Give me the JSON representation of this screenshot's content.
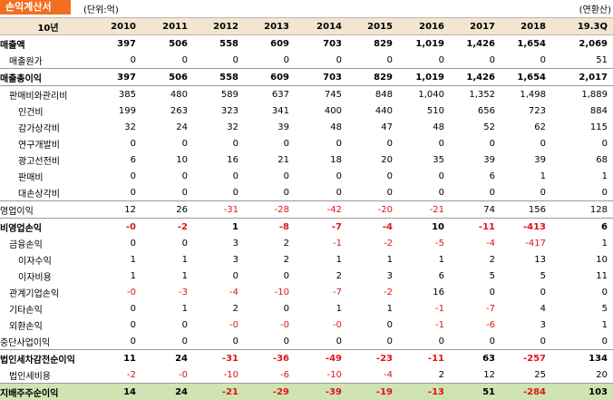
{
  "header": {
    "title": "손익계산서",
    "unit": "(단위:억)",
    "annualized": "(연환산)"
  },
  "columns": [
    "10년",
    "2010",
    "2011",
    "2012",
    "2013",
    "2014",
    "2015",
    "2016",
    "2017",
    "2018",
    "19.3Q"
  ],
  "rows": [
    {
      "label": "매출액",
      "indent": 0,
      "bold": true,
      "sep": false,
      "green": false,
      "values": [
        "397",
        "506",
        "558",
        "609",
        "703",
        "829",
        "1,019",
        "1,426",
        "1,654",
        "2,069"
      ]
    },
    {
      "label": "매출원가",
      "indent": 1,
      "bold": false,
      "sep": true,
      "green": false,
      "values": [
        "0",
        "0",
        "0",
        "0",
        "0",
        "0",
        "0",
        "0",
        "0",
        "51"
      ]
    },
    {
      "label": "매출총이익",
      "indent": 0,
      "bold": true,
      "sep": true,
      "green": false,
      "values": [
        "397",
        "506",
        "558",
        "609",
        "703",
        "829",
        "1,019",
        "1,426",
        "1,654",
        "2,017"
      ]
    },
    {
      "label": "판매비와관리비",
      "indent": 1,
      "bold": false,
      "sep": false,
      "green": false,
      "values": [
        "385",
        "480",
        "589",
        "637",
        "745",
        "848",
        "1,040",
        "1,352",
        "1,498",
        "1,889"
      ]
    },
    {
      "label": "인건비",
      "indent": 2,
      "bold": false,
      "sep": false,
      "green": false,
      "values": [
        "199",
        "263",
        "323",
        "341",
        "400",
        "440",
        "510",
        "656",
        "723",
        "884"
      ]
    },
    {
      "label": "감가상각비",
      "indent": 2,
      "bold": false,
      "sep": false,
      "green": false,
      "values": [
        "32",
        "24",
        "32",
        "39",
        "48",
        "47",
        "48",
        "52",
        "62",
        "115"
      ]
    },
    {
      "label": "연구개발비",
      "indent": 2,
      "bold": false,
      "sep": false,
      "green": false,
      "values": [
        "0",
        "0",
        "0",
        "0",
        "0",
        "0",
        "0",
        "0",
        "0",
        "0"
      ]
    },
    {
      "label": "광고선전비",
      "indent": 2,
      "bold": false,
      "sep": false,
      "green": false,
      "values": [
        "6",
        "10",
        "16",
        "21",
        "18",
        "20",
        "35",
        "39",
        "39",
        "68"
      ]
    },
    {
      "label": "판매비",
      "indent": 2,
      "bold": false,
      "sep": false,
      "green": false,
      "values": [
        "0",
        "0",
        "0",
        "0",
        "0",
        "0",
        "0",
        "6",
        "1",
        "1"
      ]
    },
    {
      "label": "대손상각비",
      "indent": 2,
      "bold": false,
      "sep": true,
      "green": false,
      "values": [
        "0",
        "0",
        "0",
        "0",
        "0",
        "0",
        "0",
        "0",
        "0",
        "0"
      ]
    },
    {
      "label": "영업이익",
      "indent": 0,
      "bold": false,
      "sep": true,
      "green": false,
      "values": [
        "12",
        "26",
        "-31",
        "-28",
        "-42",
        "-20",
        "-21",
        "74",
        "156",
        "128"
      ]
    },
    {
      "label": "비영업손익",
      "indent": 0,
      "bold": true,
      "sep": false,
      "green": false,
      "values": [
        "-0",
        "-2",
        "1",
        "-8",
        "-7",
        "-4",
        "10",
        "-11",
        "-413",
        "6"
      ]
    },
    {
      "label": "금융손익",
      "indent": 1,
      "bold": false,
      "sep": false,
      "green": false,
      "values": [
        "0",
        "0",
        "3",
        "2",
        "-1",
        "-2",
        "-5",
        "-4",
        "-417",
        "1"
      ]
    },
    {
      "label": "이자수익",
      "indent": 2,
      "bold": false,
      "sep": false,
      "green": false,
      "values": [
        "1",
        "1",
        "3",
        "2",
        "1",
        "1",
        "1",
        "2",
        "13",
        "10"
      ]
    },
    {
      "label": "이자비용",
      "indent": 2,
      "bold": false,
      "sep": false,
      "green": false,
      "values": [
        "1",
        "1",
        "0",
        "0",
        "2",
        "3",
        "6",
        "5",
        "5",
        "11"
      ]
    },
    {
      "label": "관계기업손익",
      "indent": 1,
      "bold": false,
      "sep": false,
      "green": false,
      "values": [
        "-0",
        "-3",
        "-4",
        "-10",
        "-7",
        "-2",
        "16",
        "0",
        "0",
        "0"
      ]
    },
    {
      "label": "기타손익",
      "indent": 1,
      "bold": false,
      "sep": false,
      "green": false,
      "values": [
        "0",
        "1",
        "2",
        "0",
        "1",
        "1",
        "-1",
        "-7",
        "4",
        "5"
      ]
    },
    {
      "label": "외환손익",
      "indent": 1,
      "bold": false,
      "sep": false,
      "green": false,
      "values": [
        "0",
        "0",
        "-0",
        "-0",
        "-0",
        "0",
        "-1",
        "-6",
        "3",
        "1"
      ]
    },
    {
      "label": "중단사업이익",
      "indent": 0,
      "bold": false,
      "sep": true,
      "green": false,
      "values": [
        "0",
        "0",
        "0",
        "0",
        "0",
        "0",
        "0",
        "0",
        "0",
        "0"
      ]
    },
    {
      "label": "법인세차감전순이익",
      "indent": 0,
      "bold": true,
      "sep": false,
      "green": false,
      "values": [
        "11",
        "24",
        "-31",
        "-36",
        "-49",
        "-23",
        "-11",
        "63",
        "-257",
        "134"
      ]
    },
    {
      "label": "법인세비용",
      "indent": 1,
      "bold": false,
      "sep": true,
      "green": false,
      "values": [
        "-2",
        "-0",
        "-10",
        "-6",
        "-10",
        "-4",
        "2",
        "12",
        "25",
        "20"
      ]
    },
    {
      "label": "지배주주순이익",
      "indent": 0,
      "bold": true,
      "sep": false,
      "green": true,
      "values": [
        "14",
        "24",
        "-21",
        "-29",
        "-39",
        "-19",
        "-13",
        "51",
        "-284",
        "103"
      ]
    }
  ]
}
